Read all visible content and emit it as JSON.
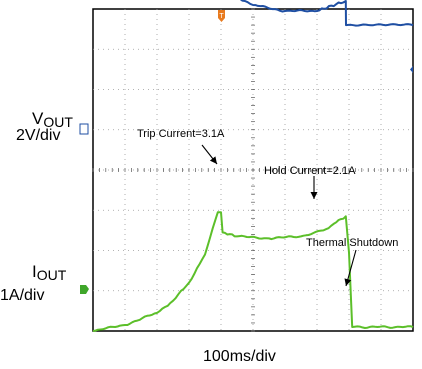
{
  "channels": {
    "vout": {
      "name_main": "V",
      "name_sub": "OUT",
      "scale": "2V/div",
      "color": "#1f4fa3"
    },
    "iout": {
      "name_main": "I",
      "name_sub": "OUT",
      "scale": "1A/div",
      "color": "#5cbf2a"
    }
  },
  "timebase": "100ms/div",
  "annotations": {
    "trip": "Trip Current=3.1A",
    "hold": "Hold Current=2.1A",
    "thermal": "Thermal Shutdown"
  },
  "chart_data": {
    "type": "line",
    "title": "",
    "xlabel": "100ms/div",
    "x_unit": "ms",
    "grid": true,
    "divisions": {
      "x": 10,
      "y": 8
    },
    "xlim": [
      0,
      1000
    ],
    "series": [
      {
        "name": "VOUT",
        "y_unit": "V",
        "scale_per_div": 2,
        "ground_div": 4.3,
        "points": [
          [
            0,
            11.4
          ],
          [
            200,
            11.3
          ],
          [
            350,
            11.2
          ],
          [
            390,
            11.1
          ],
          [
            395,
            10.6
          ],
          [
            405,
            9.0
          ],
          [
            450,
            8.0
          ],
          [
            500,
            7.6
          ],
          [
            600,
            7.3
          ],
          [
            700,
            7.3
          ],
          [
            790,
            7.8
          ],
          [
            790.5,
            6.6
          ],
          [
            1000,
            6.6
          ]
        ]
      },
      {
        "name": "IOUT",
        "y_unit": "A",
        "scale_per_div": 1,
        "ground_div": -0.15,
        "points": [
          [
            0,
            0.15
          ],
          [
            100,
            0.3
          ],
          [
            200,
            0.6
          ],
          [
            250,
            0.9
          ],
          [
            300,
            1.35
          ],
          [
            350,
            2.05
          ],
          [
            390,
            3.1
          ],
          [
            400,
            3.1
          ],
          [
            405,
            2.6
          ],
          [
            450,
            2.5
          ],
          [
            550,
            2.45
          ],
          [
            650,
            2.5
          ],
          [
            720,
            2.65
          ],
          [
            760,
            2.85
          ],
          [
            790,
            3.0
          ],
          [
            800,
            2.1
          ],
          [
            810,
            0.25
          ],
          [
            1000,
            0.25
          ]
        ]
      }
    ]
  }
}
